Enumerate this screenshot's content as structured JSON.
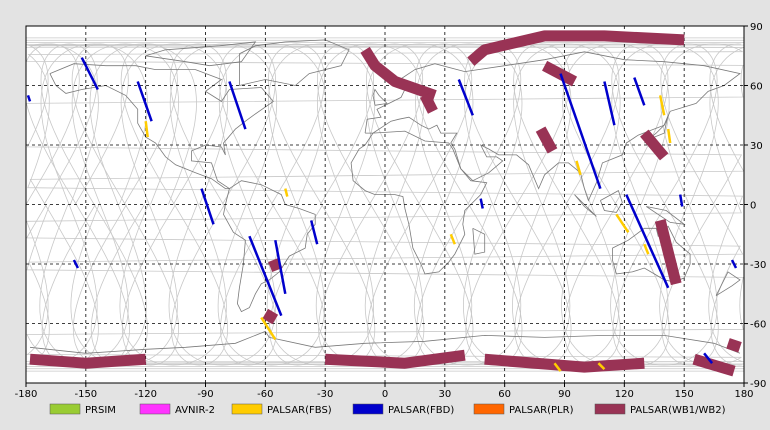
{
  "map": {
    "lon_ticks": [
      "-180",
      "-150",
      "-120",
      "-90",
      "-60",
      "-30",
      "0",
      "30",
      "60",
      "90",
      "120",
      "150",
      "180"
    ],
    "lat_ticks": [
      "90",
      "60",
      "30",
      "0",
      "-30",
      "-60",
      "-90"
    ],
    "lon_values": [
      -180,
      -150,
      -120,
      -90,
      -60,
      -30,
      0,
      30,
      60,
      90,
      120,
      150,
      180
    ],
    "lat_values": [
      90,
      60,
      30,
      0,
      -30,
      -60,
      -90
    ],
    "colors": {
      "background": "#e3e3e3",
      "map_bg": "#ffffff",
      "coast": "#7a7a7a",
      "orbit": "#c8c8c8",
      "grid": "#000000"
    }
  },
  "legend": [
    {
      "name": "prism",
      "label": "PRSIM",
      "color": "#99cc33"
    },
    {
      "name": "avnir-2",
      "label": "AVNIR-2",
      "color": "#ff33ff"
    },
    {
      "name": "palsar-fbs",
      "label": "PALSAR(FBS)",
      "color": "#ffcc00"
    },
    {
      "name": "palsar-fbd",
      "label": "PALSAR(FBD)",
      "color": "#0000cc"
    },
    {
      "name": "palsar-plr",
      "label": "PALSAR(PLR)",
      "color": "#ff6600"
    },
    {
      "name": "palsar-wb",
      "label": "PALSAR(WB1/WB2)",
      "color": "#993355"
    }
  ],
  "observations": {
    "fbd": [
      [
        [
          -152,
          74
        ],
        [
          -144,
          58
        ]
      ],
      [
        [
          -179,
          55
        ],
        [
          -178,
          52
        ]
      ],
      [
        [
          -124,
          62
        ],
        [
          -117,
          42
        ]
      ],
      [
        [
          -78,
          62
        ],
        [
          -70,
          38
        ]
      ],
      [
        [
          -92,
          8
        ],
        [
          -86,
          -10
        ]
      ],
      [
        [
          -68,
          -16
        ],
        [
          -52,
          -56
        ]
      ],
      [
        [
          -55,
          -18
        ],
        [
          -50,
          -45
        ]
      ],
      [
        [
          -37,
          -8
        ],
        [
          -34,
          -20
        ]
      ],
      [
        [
          -156,
          -28
        ],
        [
          -154,
          -32
        ]
      ],
      [
        [
          37,
          63
        ],
        [
          44,
          45
        ]
      ],
      [
        [
          48,
          3
        ],
        [
          49,
          -2
        ]
      ],
      [
        [
          88,
          66
        ],
        [
          108,
          8
        ]
      ],
      [
        [
          110,
          62
        ],
        [
          115,
          40
        ]
      ],
      [
        [
          125,
          64
        ],
        [
          130,
          50
        ]
      ],
      [
        [
          121,
          5
        ],
        [
          142,
          -42
        ]
      ],
      [
        [
          148,
          5
        ],
        [
          149,
          -1
        ]
      ],
      [
        [
          174,
          -28
        ],
        [
          176,
          -32
        ]
      ],
      [
        [
          160,
          -75
        ],
        [
          164,
          -80
        ]
      ]
    ],
    "fbs": [
      [
        [
          -120,
          42
        ],
        [
          -119,
          34
        ]
      ],
      [
        [
          -50,
          8
        ],
        [
          -49,
          4
        ]
      ],
      [
        [
          -62,
          -57
        ],
        [
          -55,
          -68
        ]
      ],
      [
        [
          33,
          -15
        ],
        [
          35,
          -20
        ]
      ],
      [
        [
          85,
          -80
        ],
        [
          88,
          -84
        ]
      ],
      [
        [
          107,
          -80
        ],
        [
          110,
          -83
        ]
      ],
      [
        [
          96,
          22
        ],
        [
          98,
          15
        ]
      ],
      [
        [
          116,
          -5
        ],
        [
          122,
          -14
        ]
      ],
      [
        [
          130,
          -20
        ],
        [
          132,
          -25
        ]
      ],
      [
        [
          138,
          55
        ],
        [
          140,
          45
        ]
      ],
      [
        [
          142,
          38
        ],
        [
          143,
          31
        ]
      ]
    ],
    "wb": [
      [
        [
          -10,
          78
        ],
        [
          -5,
          70
        ],
        [
          5,
          62
        ],
        [
          25,
          55
        ]
      ],
      [
        [
          43,
          72
        ],
        [
          50,
          78
        ],
        [
          80,
          85
        ],
        [
          110,
          85
        ],
        [
          150,
          83
        ]
      ],
      [
        [
          20,
          55
        ],
        [
          24,
          47
        ]
      ],
      [
        [
          80,
          70
        ],
        [
          95,
          62
        ]
      ],
      [
        [
          78,
          38
        ],
        [
          84,
          27
        ]
      ],
      [
        [
          130,
          36
        ],
        [
          140,
          24
        ]
      ],
      [
        [
          138,
          -8
        ],
        [
          146,
          -40
        ]
      ],
      [
        [
          -56,
          -28
        ],
        [
          -54,
          -33
        ]
      ],
      [
        [
          -60,
          -55
        ],
        [
          -55,
          -58
        ]
      ],
      [
        [
          -178,
          -78
        ],
        [
          -150,
          -80
        ],
        [
          -120,
          -78
        ]
      ],
      [
        [
          -30,
          -78
        ],
        [
          10,
          -80
        ],
        [
          40,
          -76
        ]
      ],
      [
        [
          50,
          -78
        ],
        [
          100,
          -82
        ],
        [
          130,
          -80
        ]
      ],
      [
        [
          155,
          -78
        ],
        [
          175,
          -84
        ]
      ],
      [
        [
          172,
          -70
        ],
        [
          178,
          -72
        ]
      ]
    ]
  },
  "coastlines": [
    [
      [
        -168,
        66
      ],
      [
        -156,
        71
      ],
      [
        -140,
        70
      ],
      [
        -125,
        70
      ],
      [
        -115,
        68
      ],
      [
        -95,
        68
      ],
      [
        -82,
        63
      ],
      [
        -90,
        57
      ],
      [
        -82,
        52
      ],
      [
        -78,
        58
      ],
      [
        -62,
        59
      ],
      [
        -56,
        52
      ],
      [
        -66,
        45
      ],
      [
        -70,
        42
      ],
      [
        -75,
        38
      ],
      [
        -81,
        31
      ],
      [
        -80,
        25
      ],
      [
        -82,
        29
      ],
      [
        -90,
        30
      ],
      [
        -97,
        27
      ],
      [
        -97,
        22
      ],
      [
        -87,
        21
      ],
      [
        -84,
        12
      ],
      [
        -78,
        8
      ],
      [
        -80,
        8
      ],
      [
        -87,
        13
      ],
      [
        -95,
        16
      ],
      [
        -105,
        20
      ],
      [
        -110,
        24
      ],
      [
        -115,
        31
      ],
      [
        -120,
        34
      ],
      [
        -124,
        41
      ],
      [
        -124,
        48
      ],
      [
        -130,
        55
      ],
      [
        -140,
        60
      ],
      [
        -152,
        58
      ],
      [
        -160,
        56
      ],
      [
        -165,
        60
      ],
      [
        -168,
        66
      ]
    ],
    [
      [
        -78,
        8
      ],
      [
        -72,
        12
      ],
      [
        -62,
        10
      ],
      [
        -52,
        5
      ],
      [
        -50,
        0
      ],
      [
        -43,
        -2
      ],
      [
        -35,
        -5
      ],
      [
        -35,
        -10
      ],
      [
        -39,
        -15
      ],
      [
        -40,
        -22
      ],
      [
        -48,
        -26
      ],
      [
        -53,
        -34
      ],
      [
        -58,
        -38
      ],
      [
        -62,
        -40
      ],
      [
        -65,
        -45
      ],
      [
        -68,
        -52
      ],
      [
        -72,
        -54
      ],
      [
        -74,
        -50
      ],
      [
        -73,
        -42
      ],
      [
        -71,
        -30
      ],
      [
        -70,
        -18
      ],
      [
        -76,
        -14
      ],
      [
        -81,
        -5
      ],
      [
        -80,
        0
      ],
      [
        -78,
        8
      ]
    ],
    [
      [
        -10,
        36
      ],
      [
        -9,
        43
      ],
      [
        -2,
        44
      ],
      [
        -4,
        48
      ],
      [
        2,
        51
      ],
      [
        8,
        54
      ],
      [
        10,
        58
      ],
      [
        6,
        62
      ],
      [
        15,
        68
      ],
      [
        25,
        71
      ],
      [
        40,
        67
      ],
      [
        60,
        70
      ],
      [
        80,
        73
      ],
      [
        100,
        77
      ],
      [
        120,
        73
      ],
      [
        140,
        72
      ],
      [
        160,
        70
      ],
      [
        178,
        66
      ],
      [
        170,
        60
      ],
      [
        162,
        57
      ],
      [
        156,
        51
      ],
      [
        143,
        47
      ],
      [
        140,
        40
      ],
      [
        127,
        35
      ],
      [
        121,
        31
      ],
      [
        119,
        25
      ],
      [
        109,
        21
      ],
      [
        106,
        11
      ],
      [
        102,
        2
      ],
      [
        100,
        8
      ],
      [
        98,
        16
      ],
      [
        92,
        21
      ],
      [
        87,
        21
      ],
      [
        80,
        15
      ],
      [
        77,
        8
      ],
      [
        72,
        20
      ],
      [
        66,
        25
      ],
      [
        57,
        25
      ],
      [
        52,
        28
      ],
      [
        48,
        30
      ],
      [
        51,
        24
      ],
      [
        56,
        24
      ],
      [
        59,
        22
      ],
      [
        52,
        16
      ],
      [
        44,
        12
      ],
      [
        38,
        18
      ],
      [
        35,
        28
      ],
      [
        33,
        31
      ],
      [
        36,
        36
      ],
      [
        28,
        36
      ],
      [
        26,
        40
      ],
      [
        22,
        38
      ],
      [
        18,
        40
      ],
      [
        12,
        44
      ],
      [
        7,
        43
      ],
      [
        3,
        42
      ],
      [
        -6,
        36
      ],
      [
        -10,
        36
      ]
    ],
    [
      [
        -6,
        36
      ],
      [
        10,
        37
      ],
      [
        20,
        32
      ],
      [
        32,
        31
      ],
      [
        34,
        28
      ],
      [
        38,
        18
      ],
      [
        43,
        12
      ],
      [
        51,
        11
      ],
      [
        48,
        5
      ],
      [
        40,
        -3
      ],
      [
        39,
        -10
      ],
      [
        40,
        -15
      ],
      [
        35,
        -25
      ],
      [
        32,
        -29
      ],
      [
        27,
        -34
      ],
      [
        20,
        -35
      ],
      [
        18,
        -30
      ],
      [
        14,
        -22
      ],
      [
        12,
        -10
      ],
      [
        10,
        -2
      ],
      [
        9,
        4
      ],
      [
        5,
        5
      ],
      [
        -5,
        5
      ],
      [
        -10,
        7
      ],
      [
        -16,
        12
      ],
      [
        -17,
        21
      ],
      [
        -13,
        28
      ],
      [
        -10,
        30
      ],
      [
        -6,
        36
      ]
    ],
    [
      [
        114,
        -22
      ],
      [
        122,
        -18
      ],
      [
        130,
        -12
      ],
      [
        136,
        -12
      ],
      [
        137,
        -16
      ],
      [
        142,
        -11
      ],
      [
        146,
        -19
      ],
      [
        153,
        -25
      ],
      [
        153,
        -30
      ],
      [
        150,
        -37
      ],
      [
        145,
        -39
      ],
      [
        140,
        -38
      ],
      [
        135,
        -35
      ],
      [
        130,
        -32
      ],
      [
        124,
        -34
      ],
      [
        116,
        -35
      ],
      [
        114,
        -28
      ],
      [
        114,
        -22
      ]
    ],
    [
      [
        -73,
        60
      ],
      [
        -60,
        63
      ],
      [
        -45,
        60
      ],
      [
        -38,
        66
      ],
      [
        -22,
        70
      ],
      [
        -18,
        78
      ],
      [
        -30,
        83
      ],
      [
        -50,
        82
      ],
      [
        -65,
        80
      ],
      [
        -73,
        76
      ],
      [
        -73,
        60
      ]
    ],
    [
      [
        -178,
        -72
      ],
      [
        -150,
        -75
      ],
      [
        -120,
        -73
      ],
      [
        -100,
        -72
      ],
      [
        -75,
        -70
      ],
      [
        -60,
        -64
      ],
      [
        -58,
        -67
      ],
      [
        -35,
        -72
      ],
      [
        -10,
        -70
      ],
      [
        20,
        -69
      ],
      [
        50,
        -66
      ],
      [
        80,
        -67
      ],
      [
        110,
        -66
      ],
      [
        140,
        -66
      ],
      [
        165,
        -70
      ],
      [
        178,
        -75
      ]
    ],
    [
      [
        -5,
        50
      ],
      [
        1,
        51
      ],
      [
        -3,
        55
      ],
      [
        -5,
        58
      ],
      [
        -6,
        55
      ],
      [
        -5,
        50
      ]
    ],
    [
      [
        130,
        31
      ],
      [
        135,
        34
      ],
      [
        140,
        36
      ],
      [
        141,
        41
      ],
      [
        142,
        45
      ],
      [
        140,
        40
      ],
      [
        136,
        36
      ],
      [
        130,
        31
      ]
    ],
    [
      [
        44,
        -12
      ],
      [
        50,
        -15
      ],
      [
        50,
        -24
      ],
      [
        45,
        -25
      ],
      [
        44,
        -12
      ]
    ],
    [
      [
        95,
        5
      ],
      [
        105,
        -5
      ],
      [
        106,
        -6
      ],
      [
        100,
        -1
      ],
      [
        95,
        5
      ]
    ],
    [
      [
        108,
        2
      ],
      [
        117,
        7
      ],
      [
        119,
        1
      ],
      [
        116,
        -4
      ],
      [
        110,
        -3
      ],
      [
        108,
        2
      ]
    ],
    [
      [
        131,
        -1
      ],
      [
        141,
        -3
      ],
      [
        150,
        -10
      ],
      [
        143,
        -9
      ],
      [
        131,
        -1
      ]
    ],
    [
      [
        166,
        -46
      ],
      [
        174,
        -41
      ],
      [
        178,
        -38
      ],
      [
        172,
        -34
      ],
      [
        166,
        -46
      ]
    ],
    [
      [
        -83,
        80
      ],
      [
        -65,
        82
      ],
      [
        -72,
        72
      ],
      [
        -88,
        70
      ],
      [
        -100,
        72
      ],
      [
        -120,
        75
      ],
      [
        -110,
        78
      ],
      [
        -83,
        80
      ]
    ]
  ]
}
